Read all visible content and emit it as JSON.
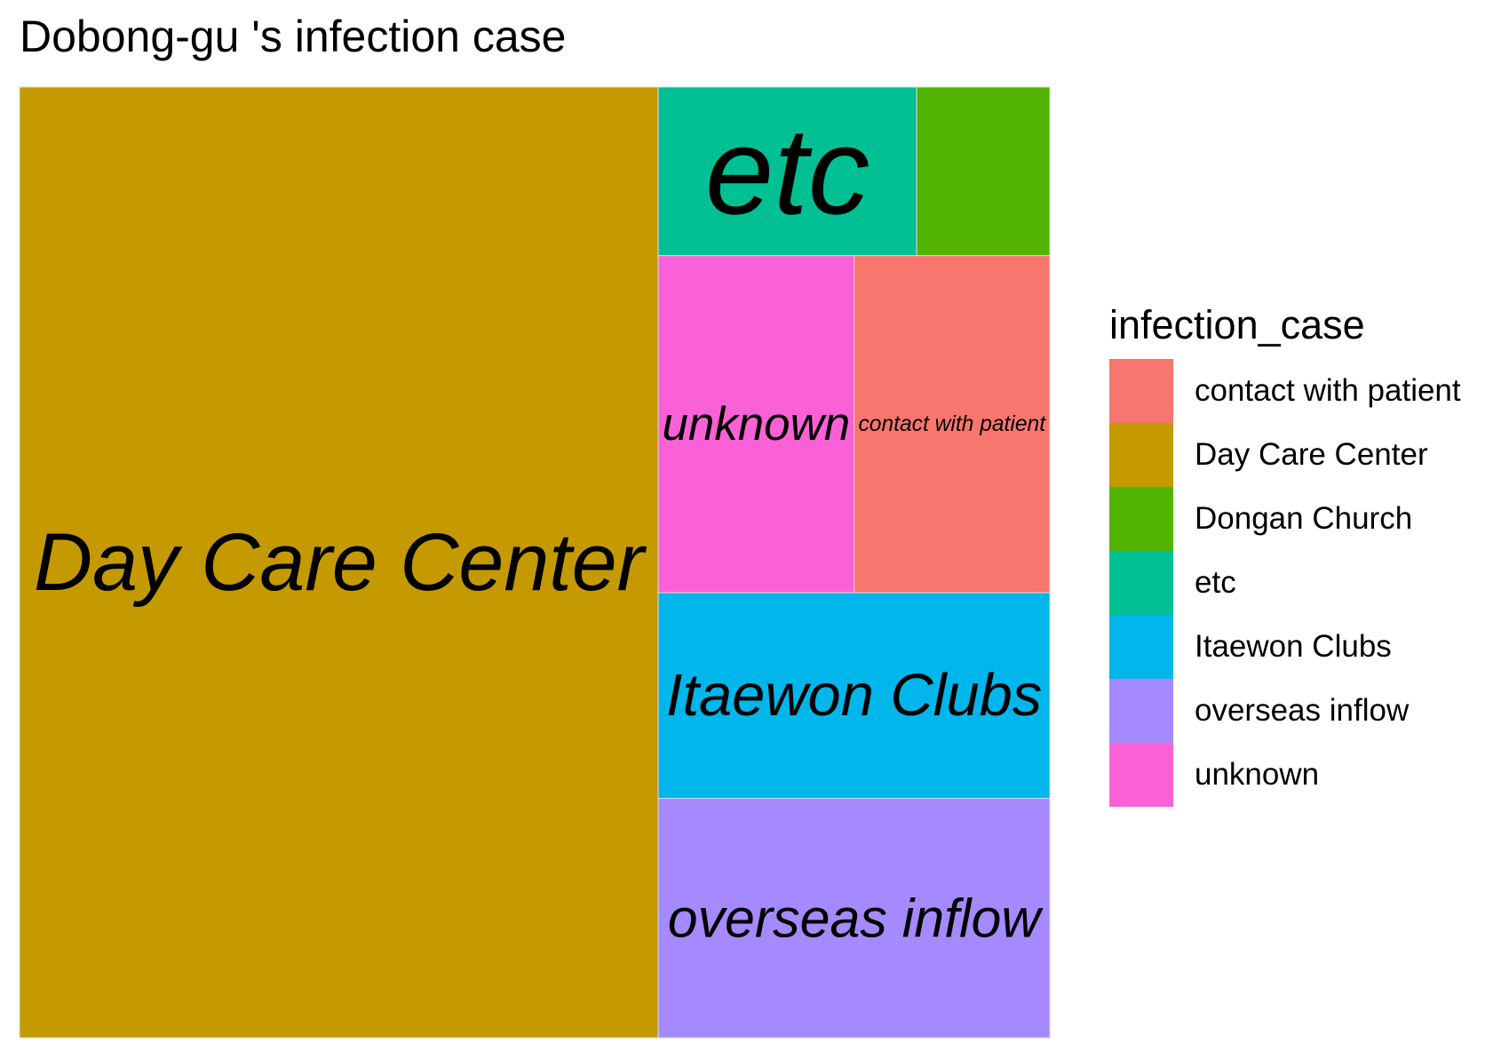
{
  "chart_data": {
    "type": "treemap",
    "title": "Dobong-gu 's infection case",
    "legend_title": "infection_case",
    "legend_placement": "right",
    "categories": [
      "contact with patient",
      "Day Care Center",
      "Dongan Church",
      "etc",
      "Itaewon Clubs",
      "overseas inflow",
      "unknown"
    ],
    "colors": [
      "#F8766D",
      "#C49A00",
      "#53B400",
      "#00C094",
      "#00B6EB",
      "#A58AFF",
      "#FB61D7"
    ],
    "values": [
      5.0,
      46.0,
      1.7,
      3.3,
      6.1,
      7.1,
      5.0
    ],
    "tile_labels": [
      "contact with patient",
      "Day Care Center",
      "",
      "etc",
      "Itaewon Clubs",
      "overseas inflow",
      "unknown"
    ]
  }
}
